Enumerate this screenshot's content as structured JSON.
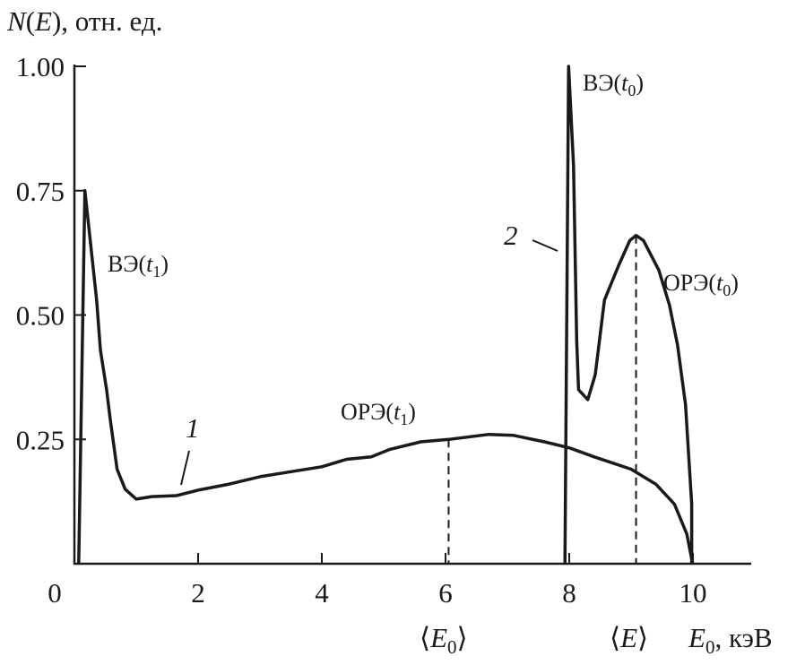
{
  "chart_data": {
    "type": "line",
    "title": "",
    "ylabel": {
      "var": "N",
      "arg": "E",
      "rest": ", отн. ед."
    },
    "xlabel": {
      "var": "E",
      "sub": "0",
      "rest": ", кэВ"
    },
    "xlim": [
      0,
      11
    ],
    "ylim": [
      0,
      1.0
    ],
    "grid": false,
    "x_ticks": [
      "0",
      "2",
      "4",
      "6",
      "8",
      "10"
    ],
    "x_tick_values": [
      0,
      2,
      4,
      6,
      8,
      10
    ],
    "y_ticks": [
      "0.25",
      "0.50",
      "0.75",
      "1.00"
    ],
    "y_tick_values": [
      0.25,
      0.5,
      0.75,
      1.0
    ],
    "series": [
      {
        "name": "1",
        "x": [
          0.07,
          0.17,
          0.36,
          0.42,
          0.52,
          0.58,
          0.69,
          0.82,
          1.0,
          1.25,
          1.65,
          2.0,
          2.5,
          3.0,
          3.5,
          4.0,
          4.4,
          4.8,
          5.1,
          5.6,
          6.05,
          6.7,
          7.1,
          7.6,
          8.0,
          8.4,
          9.0,
          9.4,
          9.7,
          9.9,
          9.98
        ],
        "y": [
          0,
          0.75,
          0.53,
          0.43,
          0.35,
          0.29,
          0.19,
          0.15,
          0.13,
          0.135,
          0.137,
          0.148,
          0.16,
          0.175,
          0.185,
          0.195,
          0.21,
          0.215,
          0.23,
          0.245,
          0.25,
          0.26,
          0.258,
          0.245,
          0.233,
          0.215,
          0.19,
          0.16,
          0.12,
          0.06,
          0.01
        ]
      },
      {
        "name": "2",
        "x": [
          7.93,
          7.99,
          8.07,
          8.12,
          8.15,
          8.3,
          8.42,
          8.57,
          8.8,
          8.98,
          9.08,
          9.2,
          9.45,
          9.62,
          9.75,
          9.88,
          9.98,
          9.98
        ],
        "y": [
          0,
          1.0,
          0.8,
          0.45,
          0.35,
          0.33,
          0.38,
          0.53,
          0.6,
          0.65,
          0.66,
          0.65,
          0.59,
          0.52,
          0.44,
          0.32,
          0.12,
          0
        ]
      }
    ],
    "markers": [
      {
        "x": 6.05,
        "y": 0.25,
        "label": {
          "pre": "⟨",
          "var": "E",
          "sub": "0",
          "post": "⟩"
        }
      },
      {
        "x": 9.08,
        "y": 0.66,
        "label": {
          "pre": "⟨",
          "var": "E",
          "sub": "",
          "post": "⟩"
        }
      }
    ],
    "annotations": [
      {
        "pre": "ВЭ(",
        "var": "t",
        "sub": "1",
        "post": ")"
      },
      {
        "pre": "ВЭ(",
        "var": "t",
        "sub": "0",
        "post": ")"
      },
      {
        "pre": "ОРЭ(",
        "var": "t",
        "sub": "1",
        "post": ")"
      },
      {
        "pre": "ОРЭ(",
        "var": "t",
        "sub": "0",
        "post": ")"
      }
    ],
    "curve_labels": [
      "1",
      "2"
    ],
    "colors": {
      "line": "#1a1a1a"
    }
  }
}
